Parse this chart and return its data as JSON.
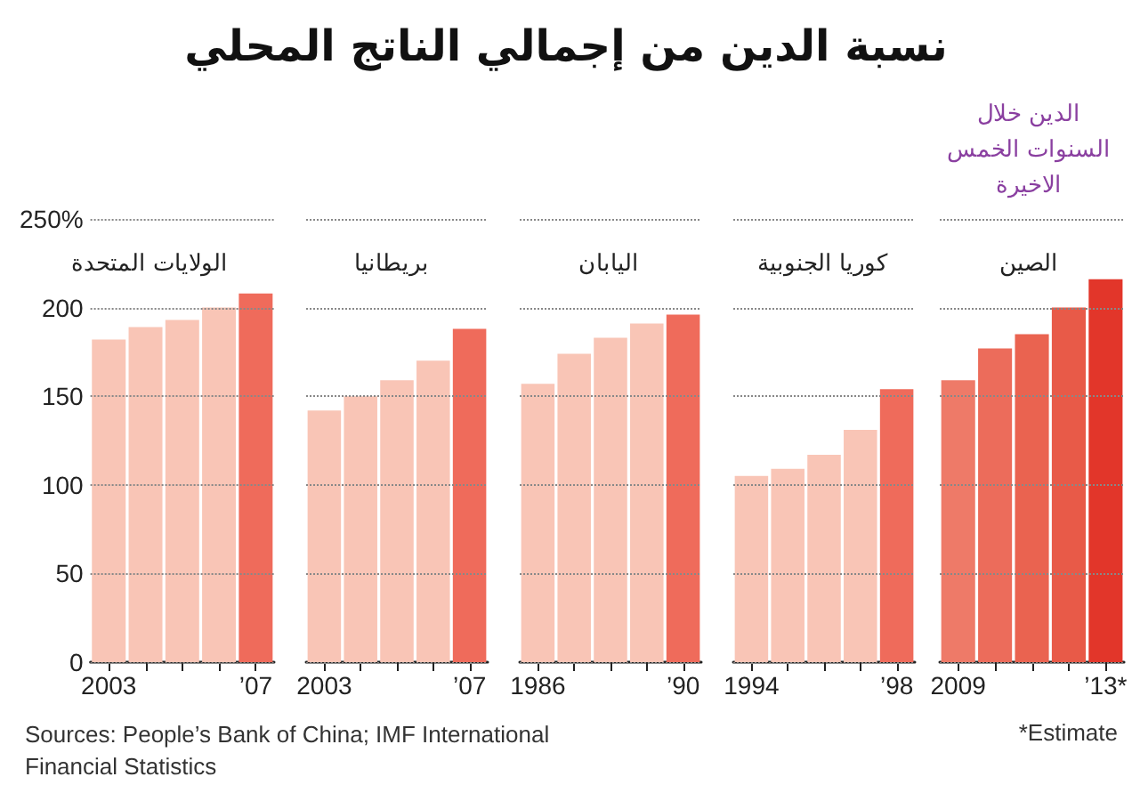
{
  "chart_data": [
    {
      "type": "bar",
      "title": "الولايات المتحدة",
      "categories": [
        "2003",
        null,
        null,
        null,
        "’07"
      ],
      "values": [
        182,
        189,
        193,
        200,
        208
      ],
      "colors": [
        "#f9c5b6",
        "#f9c5b6",
        "#f9c5b6",
        "#f9c5b6",
        "#ef6b5b"
      ],
      "ylim": [
        0,
        250
      ],
      "yticks": [
        0,
        50,
        100,
        150,
        200,
        {
          "value": 250,
          "label": "250%"
        }
      ],
      "grid": "y",
      "annotations": [
        "نسبة الدين من إجمالي الناتج المحلي",
        "Sources: People’s Bank of China; IMF International Financial Statistics"
      ]
    },
    {
      "type": "bar",
      "title": "بريطانيا",
      "categories": [
        "2003",
        null,
        null,
        null,
        "’07"
      ],
      "values": [
        142,
        150,
        159,
        170,
        188
      ],
      "colors": [
        "#f9c5b6",
        "#f9c5b6",
        "#f9c5b6",
        "#f9c5b6",
        "#ef6b5b"
      ],
      "ylim": [
        0,
        250
      ],
      "yticks": [
        0,
        50,
        100,
        150,
        200,
        250
      ],
      "grid": "y",
      "tick_labels": "x"
    },
    {
      "type": "bar",
      "title": "اليابان",
      "categories": [
        "1986",
        null,
        null,
        null,
        "’90"
      ],
      "values": [
        157,
        174,
        183,
        191,
        196
      ],
      "colors": [
        "#f9c5b6",
        "#f9c5b6",
        "#f9c5b6",
        "#f9c5b6",
        "#ef6b5b"
      ],
      "ylim": [
        0,
        250
      ],
      "yticks": [
        0,
        50,
        100,
        150,
        200,
        250
      ],
      "grid": "y",
      "tick_labels": "x"
    },
    {
      "type": "bar",
      "title": "كوريا الجنوبية",
      "categories": [
        "1994",
        null,
        null,
        null,
        "’98"
      ],
      "values": [
        105,
        109,
        117,
        131,
        154
      ],
      "colors": [
        "#f9c5b6",
        "#f9c5b6",
        "#f9c5b6",
        "#f9c5b6",
        "#ef6b5b"
      ],
      "ylim": [
        0,
        250
      ],
      "yticks": [
        0,
        50,
        100,
        150,
        200,
        250
      ],
      "grid": "y",
      "tick_labels": "x"
    },
    {
      "type": "bar",
      "title": "الصين",
      "categories": [
        "2009",
        null,
        null,
        null,
        "’13*"
      ],
      "values": [
        159,
        177,
        185,
        200,
        216
      ],
      "colors": [
        "#ee7a68",
        "#ec6c5b",
        "#ea6350",
        "#e85a48",
        "#e2362a"
      ],
      "ylim": [
        0,
        250
      ],
      "yticks": [
        0,
        50,
        100,
        150,
        200,
        250
      ],
      "grid": "y",
      "tick_labels": "x",
      "annotations": [
        "الدين خلال السنوات الخمس الاخيرة",
        "*Estimate"
      ]
    }
  ]
}
